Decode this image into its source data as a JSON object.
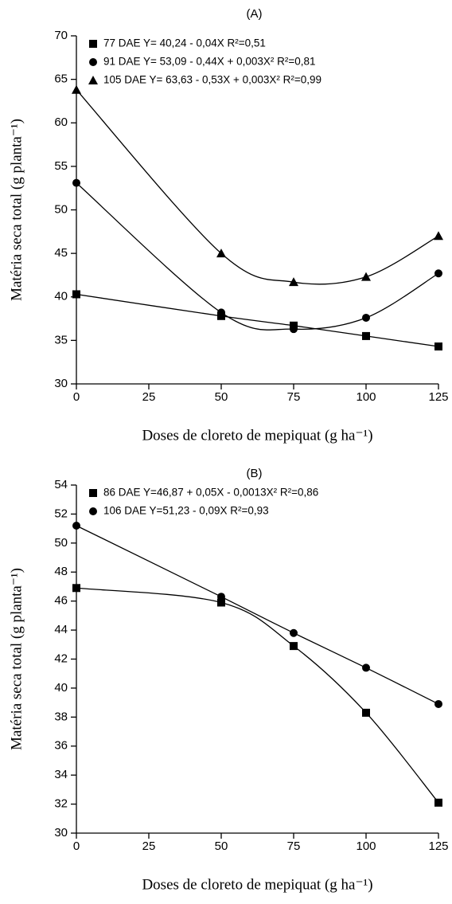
{
  "chart_data": [
    {
      "type": "line",
      "title": "(A)",
      "x_label": "Doses de cloreto de mepiquat (g ha⁻¹)",
      "y_label": "Matéria seca total (g planta⁻¹)",
      "x": [
        0,
        50,
        75,
        100,
        125
      ],
      "xlim": [
        0,
        125
      ],
      "xticks": [
        0,
        25,
        50,
        75,
        100,
        125
      ],
      "ylim": [
        30,
        70
      ],
      "yticks": [
        30,
        35,
        40,
        45,
        50,
        55,
        60,
        65,
        70
      ],
      "legend": "upper left",
      "series": [
        {
          "name": "77 DAE Y= 40,24 - 0,04X R²=0,51",
          "marker": "square",
          "color": "#000000",
          "values": [
            40.3,
            37.8,
            36.7,
            35.5,
            34.3
          ]
        },
        {
          "name": "91 DAE Y= 53,09 - 0,44X + 0,003X² R²=0,81",
          "marker": "circle",
          "color": "#000000",
          "values": [
            53.1,
            38.2,
            36.3,
            37.6,
            42.7
          ]
        },
        {
          "name": "105 DAE Y= 63,63 - 0,53X + 0,003X² R²=0,99",
          "marker": "triangle",
          "color": "#000000",
          "values": [
            63.8,
            45.0,
            41.7,
            42.3,
            47.0
          ]
        }
      ]
    },
    {
      "type": "line",
      "title": "(B)",
      "x_label": "Doses de cloreto de mepiquat (g ha⁻¹)",
      "y_label": "Matéria seca total (g planta⁻¹)",
      "x": [
        0,
        50,
        75,
        100,
        125
      ],
      "xlim": [
        0,
        125
      ],
      "xticks": [
        0,
        25,
        50,
        75,
        100,
        125
      ],
      "ylim": [
        30,
        54
      ],
      "yticks": [
        30,
        32,
        34,
        36,
        38,
        40,
        42,
        44,
        46,
        48,
        50,
        52,
        54
      ],
      "legend": "upper left",
      "series": [
        {
          "name": "86 DAE Y=46,87 + 0,05X - 0,0013X² R²=0,86",
          "marker": "square",
          "color": "#000000",
          "values": [
            46.9,
            45.9,
            42.9,
            38.3,
            32.1
          ]
        },
        {
          "name": "106 DAE Y=51,23 - 0,09X R²=0,93",
          "marker": "circle",
          "color": "#000000",
          "values": [
            51.2,
            46.3,
            43.8,
            41.4,
            38.9
          ]
        }
      ]
    }
  ]
}
